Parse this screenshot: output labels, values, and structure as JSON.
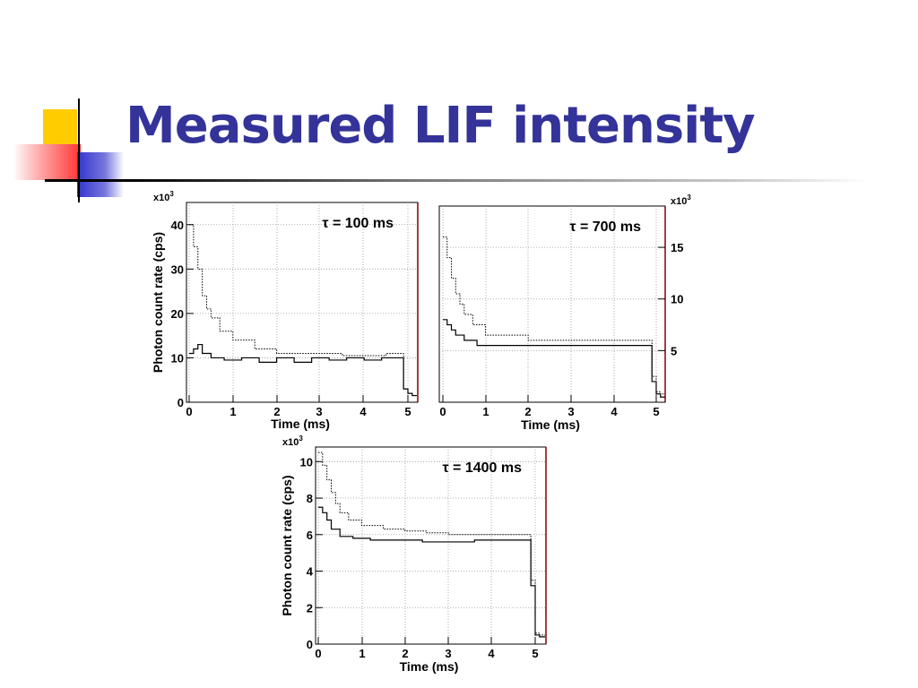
{
  "slide": {
    "title": "Measured LIF intensity"
  },
  "colors": {
    "title": "#333399",
    "deco_yellow": "#ffcc00",
    "deco_red": "#ff3333",
    "deco_blue": "#3333cc",
    "frame": "#800000"
  },
  "chart_data": [
    {
      "type": "line",
      "annotation": "τ = 100 ms",
      "xlabel": "Time (ms)",
      "ylabel": "Photon count rate (cps)",
      "y_multiplier": "x10",
      "y_multiplier_exp": "3",
      "y_axis_side": "left",
      "xlim": [
        0,
        5.2
      ],
      "ylim": [
        0,
        45
      ],
      "xticks": [
        "0",
        "1",
        "2",
        "3",
        "4",
        "5"
      ],
      "yticks": [
        "0",
        "10",
        "20",
        "30",
        "40"
      ],
      "grid": true,
      "series": [
        {
          "style": "dotted",
          "x": [
            0,
            0.1,
            0.2,
            0.3,
            0.4,
            0.5,
            0.7,
            1.0,
            1.5,
            2.0,
            2.5,
            3.0,
            3.5,
            4.0,
            4.5,
            4.8,
            4.9,
            5.0,
            5.1,
            5.2
          ],
          "y": [
            40,
            35,
            30,
            24,
            21,
            19,
            16,
            14,
            12,
            11,
            11,
            11,
            10.5,
            10.5,
            11,
            11,
            3,
            2,
            1.5,
            1.5
          ]
        },
        {
          "style": "solid",
          "x": [
            0,
            0.1,
            0.2,
            0.3,
            0.5,
            0.8,
            1.2,
            1.6,
            2.0,
            2.4,
            2.8,
            3.2,
            3.6,
            4.0,
            4.4,
            4.8,
            4.9,
            5.0,
            5.1,
            5.2
          ],
          "y": [
            11,
            12,
            13,
            11,
            10,
            9.5,
            10,
            9,
            10,
            9,
            10,
            9.5,
            10,
            9.5,
            10,
            10,
            3,
            2,
            1.5,
            1.5
          ]
        }
      ]
    },
    {
      "type": "line",
      "annotation": "τ = 700 ms",
      "xlabel": "Time (ms)",
      "ylabel": "",
      "y_multiplier": "x10",
      "y_multiplier_exp": "3",
      "y_axis_side": "right",
      "xlim": [
        0,
        5.2
      ],
      "ylim": [
        0,
        19
      ],
      "xticks": [
        "0",
        "1",
        "2",
        "3",
        "4",
        "5"
      ],
      "yticks": [
        "5",
        "10",
        "15"
      ],
      "grid": true,
      "series": [
        {
          "style": "dotted",
          "x": [
            0,
            0.1,
            0.2,
            0.3,
            0.4,
            0.5,
            0.7,
            1.0,
            1.5,
            2.0,
            2.5,
            3.0,
            3.5,
            4.0,
            4.5,
            4.8,
            4.9,
            5.0,
            5.1,
            5.2
          ],
          "y": [
            16,
            14,
            12,
            10.5,
            9.5,
            8.5,
            7.5,
            6.5,
            6.5,
            6,
            6,
            6,
            6,
            6,
            6,
            6,
            2.5,
            1,
            0.8,
            0.8
          ]
        },
        {
          "style": "solid",
          "x": [
            0,
            0.1,
            0.2,
            0.3,
            0.5,
            0.8,
            1.2,
            1.6,
            2.0,
            2.4,
            2.8,
            3.2,
            3.6,
            4.0,
            4.4,
            4.8,
            4.9,
            5.0,
            5.1,
            5.2
          ],
          "y": [
            8,
            7.5,
            7,
            6.5,
            6,
            5.5,
            5.5,
            5.5,
            5.5,
            5.5,
            5.5,
            5.5,
            5.5,
            5.5,
            5.5,
            5.5,
            2,
            0.8,
            0.5,
            0.5
          ]
        }
      ]
    },
    {
      "type": "line",
      "annotation": "τ = 1400 ms",
      "xlabel": "Time (ms)",
      "ylabel": "Photon count rate (cps)",
      "y_multiplier": "x10",
      "y_multiplier_exp": "3",
      "y_axis_side": "left",
      "xlim": [
        0,
        5.2
      ],
      "ylim": [
        0,
        10.8
      ],
      "xticks": [
        "0",
        "1",
        "2",
        "3",
        "4",
        "5"
      ],
      "yticks": [
        "0",
        "2",
        "4",
        "6",
        "8",
        "10"
      ],
      "grid": true,
      "series": [
        {
          "style": "dotted",
          "x": [
            0,
            0.1,
            0.2,
            0.3,
            0.4,
            0.5,
            0.7,
            1.0,
            1.5,
            2.0,
            2.5,
            3.0,
            3.5,
            4.0,
            4.5,
            4.8,
            4.9,
            5.0,
            5.1,
            5.2
          ],
          "y": [
            10.5,
            9.8,
            9,
            8.3,
            7.7,
            7.2,
            6.8,
            6.5,
            6.3,
            6.2,
            6.1,
            6,
            6,
            6,
            6,
            6,
            3.5,
            0.6,
            0.5,
            0.5
          ]
        },
        {
          "style": "solid",
          "x": [
            0,
            0.1,
            0.2,
            0.3,
            0.5,
            0.8,
            1.2,
            1.6,
            2.0,
            2.4,
            2.8,
            3.2,
            3.6,
            4.0,
            4.4,
            4.8,
            4.9,
            5.0,
            5.1,
            5.2
          ],
          "y": [
            7.5,
            7.2,
            6.8,
            6.3,
            5.9,
            5.8,
            5.7,
            5.7,
            5.7,
            5.6,
            5.6,
            5.6,
            5.7,
            5.7,
            5.7,
            5.7,
            3.2,
            0.5,
            0.4,
            0.4
          ]
        }
      ]
    }
  ]
}
